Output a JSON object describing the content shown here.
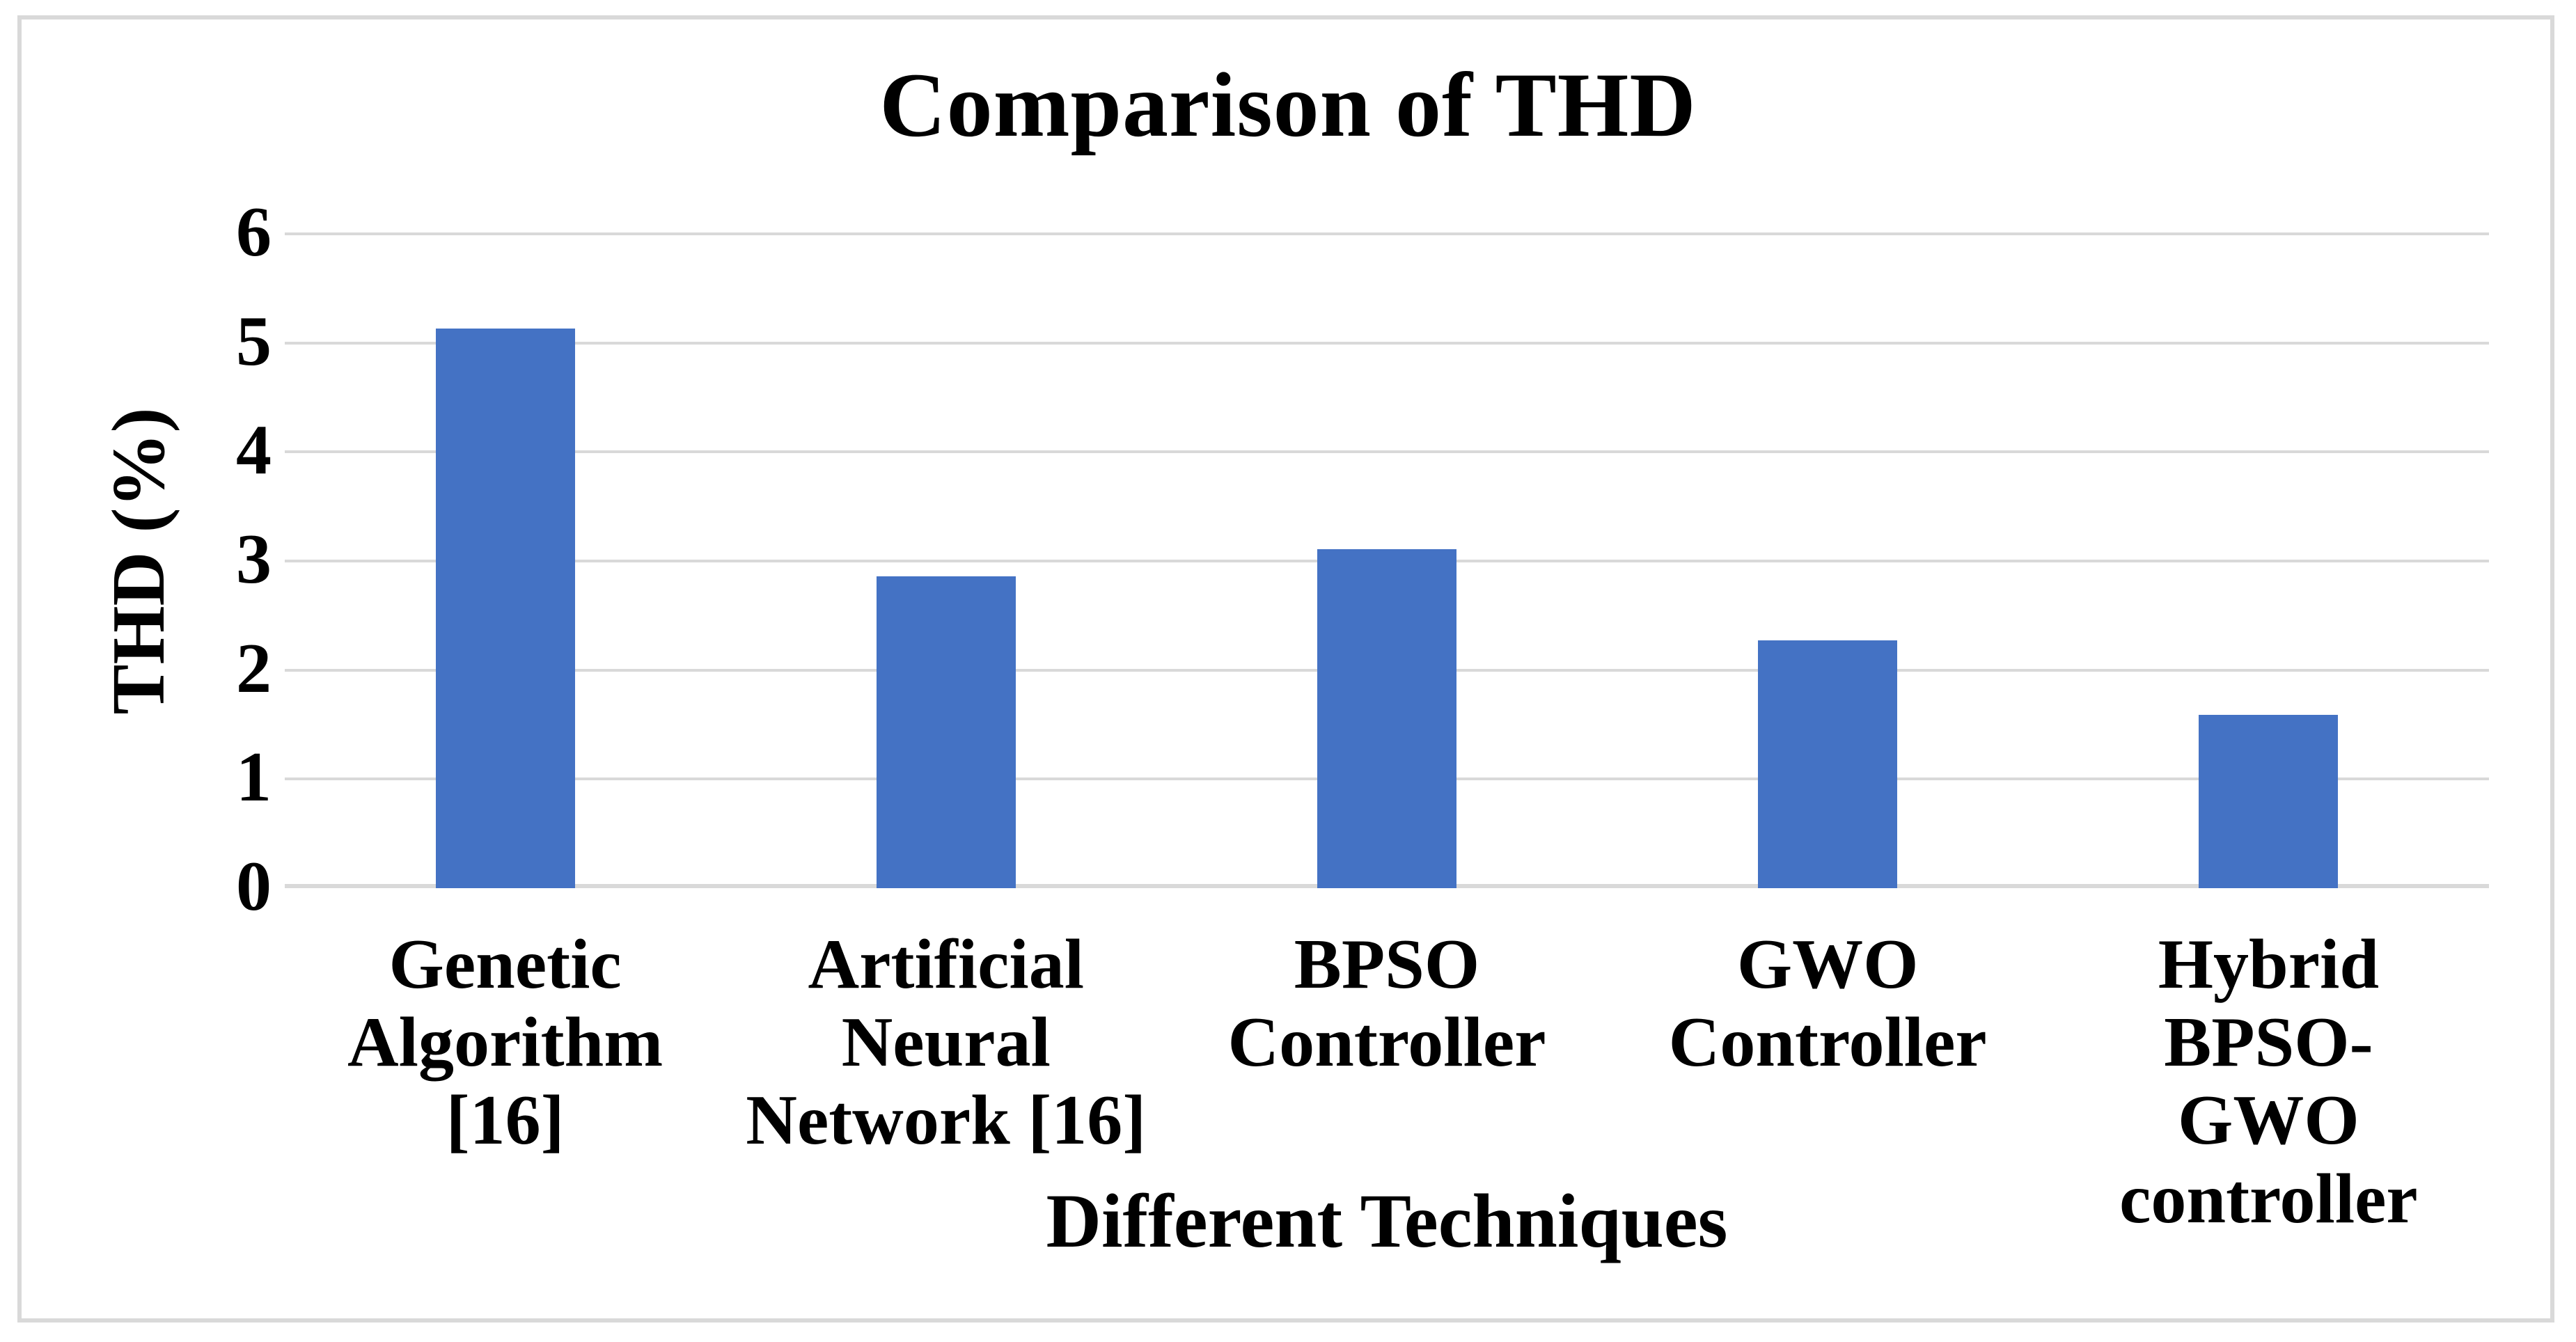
{
  "chart_data": {
    "type": "bar",
    "title": "Comparison of THD",
    "xlabel": "Different Techniques",
    "ylabel": "THD (%)",
    "categories": [
      "Genetic\nAlgorithm\n[16]",
      "Artificial\nNeural\nNetwork [16]",
      "BPSO\nController",
      "GWO\nController",
      "Hybrid BPSO-\nGWO\ncontroller"
    ],
    "values": [
      5.13,
      2.86,
      3.11,
      2.27,
      1.59
    ],
    "ylim": [
      0,
      6
    ],
    "yticks": [
      0,
      1,
      2,
      3,
      4,
      5,
      6
    ],
    "grid": true,
    "legend_position": "none",
    "bar_color": "#4472C4",
    "gridline_color": "#D9D9D9",
    "axis_line_color": "#D9D9D9",
    "border_color": "#D9D9D9",
    "text_color": "#000000",
    "background": "#FFFFFF"
  }
}
